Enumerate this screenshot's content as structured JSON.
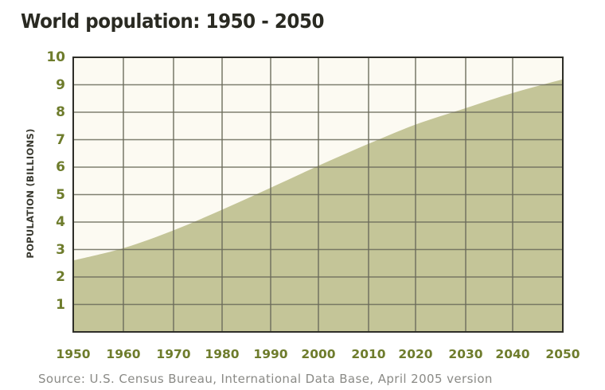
{
  "title": "World population: 1950 - 2050",
  "source": "Source: U.S. Census Bureau, International Data Base, April 2005 version",
  "colors": {
    "fill": "#c4c598",
    "plot_background": "#fcfaf2",
    "grid": "#6a6a5a",
    "border": "#2e2e28",
    "tick_label": "#6e7c2c",
    "title": "#2a2a22"
  },
  "chart_data": {
    "type": "area",
    "title": "World population: 1950 - 2050",
    "xlabel": "",
    "ylabel": "POPULATION (BILLIONS)",
    "categories": [
      "1950",
      "1960",
      "1970",
      "1980",
      "1990",
      "2000",
      "2010",
      "2020",
      "2030",
      "2040",
      "2050"
    ],
    "x": [
      1950,
      1960,
      1970,
      1980,
      1990,
      2000,
      2010,
      2020,
      2030,
      2040,
      2050
    ],
    "values": [
      2.6,
      3.05,
      3.7,
      4.45,
      5.25,
      6.05,
      6.85,
      7.55,
      8.15,
      8.7,
      9.2
    ],
    "series": [
      {
        "name": "World population (billions)",
        "values": [
          2.6,
          3.05,
          3.7,
          4.45,
          5.25,
          6.05,
          6.85,
          7.55,
          8.15,
          8.7,
          9.2
        ]
      }
    ],
    "yticks": [
      "1",
      "2",
      "3",
      "4",
      "5",
      "6",
      "7",
      "8",
      "9",
      "10"
    ],
    "ylim": [
      0,
      10
    ],
    "xlim": [
      1950,
      2050
    ],
    "grid": true,
    "legend": "none",
    "source": "Source: U.S. Census Bureau, International Data Base, April 2005 version"
  }
}
